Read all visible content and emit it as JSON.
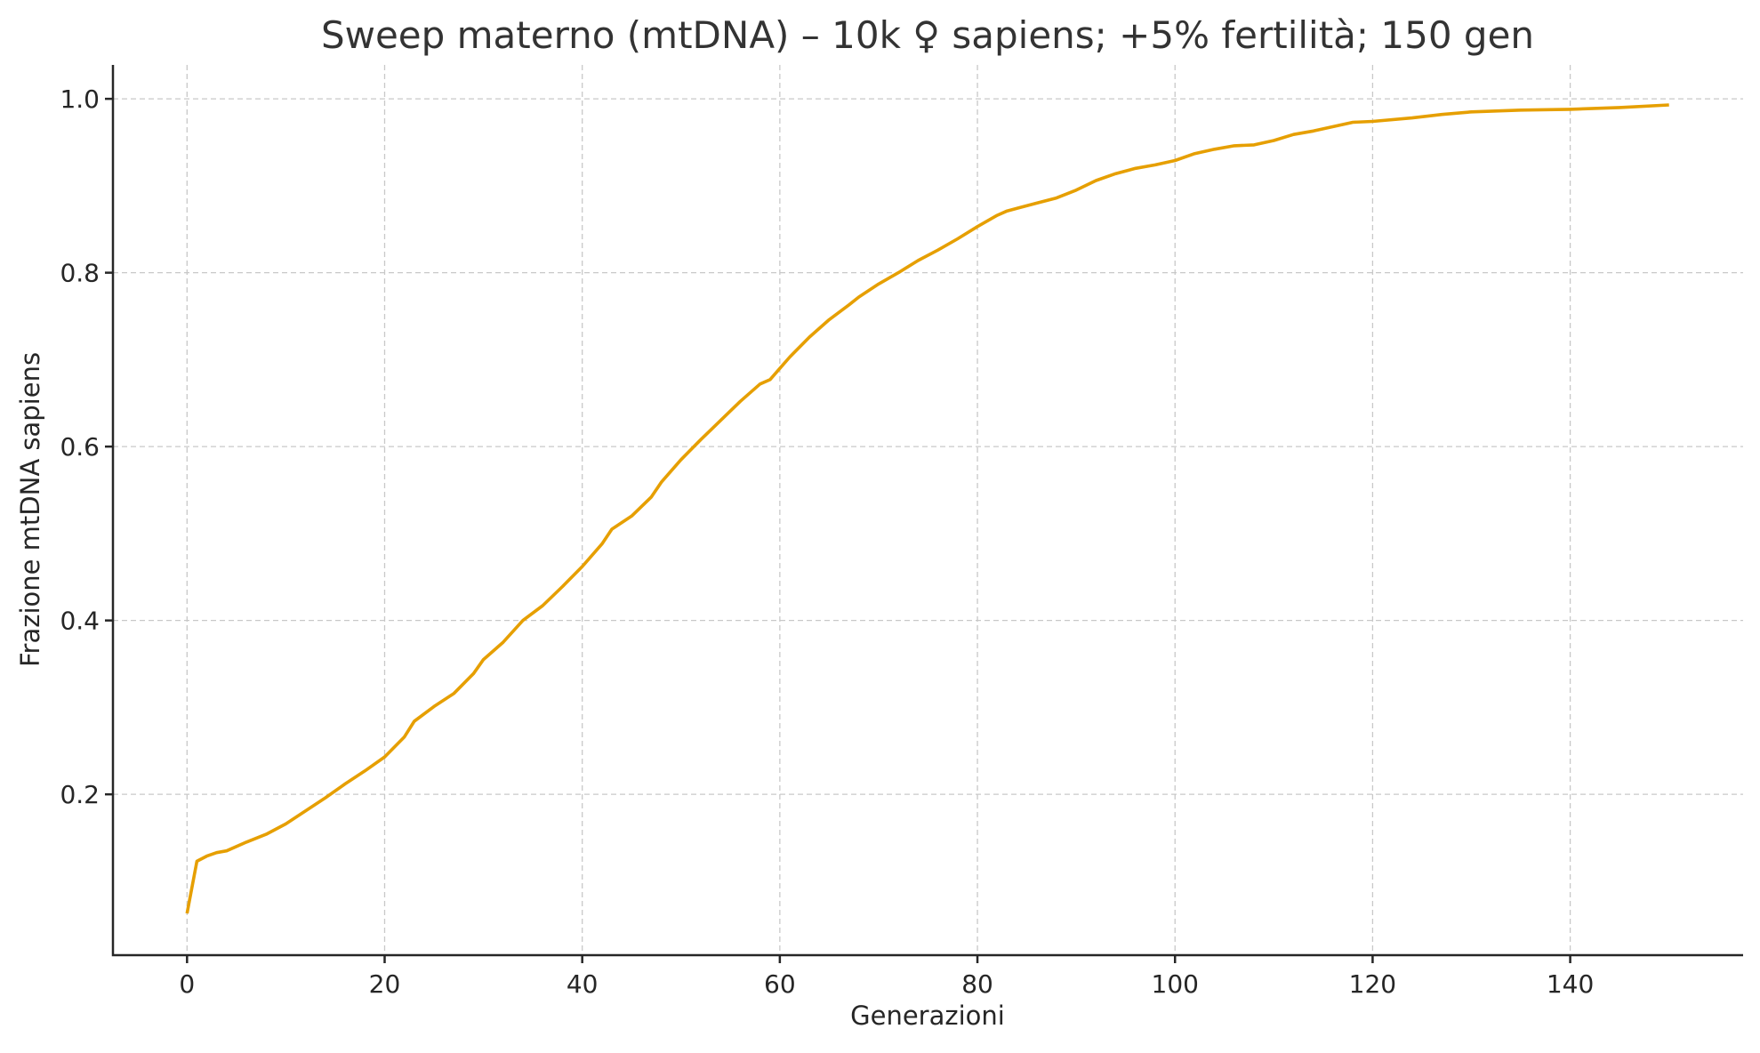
{
  "chart_data": {
    "type": "line",
    "title": "Sweep materno (mtDNA) – 10k ♀ sapiens; +5% fertilità; 150 gen",
    "xlabel": "Generazioni",
    "ylabel": "Frazione mtDNA sapiens",
    "xlim": [
      -7.5,
      157.5
    ],
    "ylim": [
      0.015,
      1.039
    ],
    "xticks": [
      0,
      20,
      40,
      60,
      80,
      100,
      120,
      140
    ],
    "xtick_labels": [
      "0",
      "20",
      "40",
      "60",
      "80",
      "100",
      "120",
      "140"
    ],
    "yticks": [
      0.2,
      0.4,
      0.6,
      0.8,
      1.0
    ],
    "ytick_labels": [
      "0.2",
      "0.4",
      "0.6",
      "0.8",
      "1.0"
    ],
    "grid": true,
    "series": [
      {
        "name": "mtDNA sapiens",
        "color": "#E69F00",
        "x": [
          0,
          1,
          2,
          3,
          4,
          6,
          8,
          10,
          12,
          14,
          16,
          18,
          20,
          22,
          23,
          25,
          27,
          29,
          30,
          32,
          34,
          36,
          38,
          40,
          42,
          43,
          45,
          47,
          48,
          50,
          52,
          54,
          56,
          58,
          59,
          60,
          61,
          63,
          65,
          67,
          68,
          70,
          72,
          74,
          76,
          78,
          80,
          82,
          83,
          86,
          88,
          90,
          92,
          94,
          96,
          98,
          100,
          102,
          104,
          106,
          108,
          110,
          112,
          114,
          116,
          118,
          120,
          124,
          127,
          130,
          135,
          140,
          145,
          150
        ],
        "y": [
          0.063,
          0.123,
          0.129,
          0.133,
          0.135,
          0.145,
          0.154,
          0.166,
          0.181,
          0.196,
          0.212,
          0.227,
          0.243,
          0.266,
          0.284,
          0.301,
          0.316,
          0.339,
          0.355,
          0.375,
          0.4,
          0.417,
          0.439,
          0.462,
          0.488,
          0.505,
          0.52,
          0.542,
          0.559,
          0.585,
          0.608,
          0.63,
          0.652,
          0.672,
          0.677,
          0.69,
          0.703,
          0.726,
          0.746,
          0.763,
          0.772,
          0.787,
          0.8,
          0.814,
          0.826,
          0.839,
          0.853,
          0.866,
          0.871,
          0.88,
          0.886,
          0.895,
          0.906,
          0.914,
          0.92,
          0.924,
          0.929,
          0.937,
          0.942,
          0.946,
          0.947,
          0.952,
          0.959,
          0.963,
          0.968,
          0.973,
          0.974,
          0.978,
          0.982,
          0.985,
          0.987,
          0.988,
          0.99,
          0.993
        ]
      }
    ]
  }
}
